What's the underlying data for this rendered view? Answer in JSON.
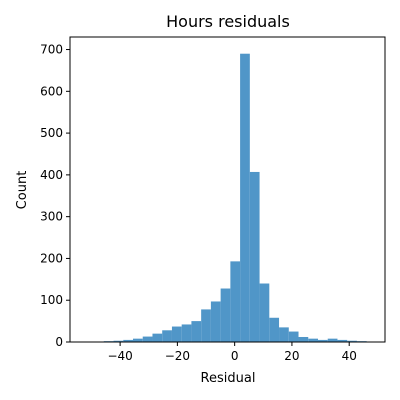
{
  "chart_data": {
    "type": "bar",
    "title": "Hours residuals",
    "xlabel": "Residual",
    "ylabel": "Count",
    "xlim": [
      -57.5,
      52.5
    ],
    "ylim": [
      0,
      730
    ],
    "xticks": [
      -40,
      -20,
      0,
      20,
      40
    ],
    "yticks": [
      0,
      100,
      200,
      300,
      400,
      500,
      600,
      700
    ],
    "bar_color": "#5096c8",
    "bin_width": 3.4,
    "bins_left": [
      -52.5,
      -49.1,
      -45.7,
      -42.3,
      -38.9,
      -35.5,
      -32.1,
      -28.7,
      -25.3,
      -21.9,
      -18.5,
      -15.1,
      -11.7,
      -8.3,
      -4.9,
      -1.5,
      1.9,
      5.3,
      8.7,
      12.1,
      15.5,
      18.9,
      22.3,
      25.7,
      29.1,
      32.5,
      35.9,
      39.3,
      42.7
    ],
    "values": [
      1,
      1,
      2,
      3,
      5,
      8,
      13,
      20,
      28,
      37,
      42,
      50,
      78,
      97,
      128,
      193,
      690,
      407,
      140,
      58,
      35,
      25,
      12,
      8,
      5,
      8,
      5,
      3,
      2
    ]
  }
}
